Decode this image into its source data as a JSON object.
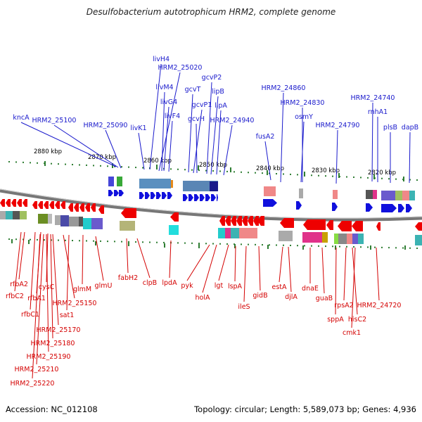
{
  "title": "Desulfobacterium autotrophicum HRM2, complete genome",
  "accession": "Accession: NC_012108",
  "summary": "Topology: circular; Length: 5,589,073 bp; Genes: 4,936",
  "colors": {
    "forward_label": "#1a1acc",
    "reverse_label": "#d40000",
    "forward_gene": "#1010dd",
    "reverse_gene": "#ee0000",
    "backbone": "#777777",
    "tick": "#2e7d32"
  },
  "ruler_labels": [
    "2880 kbp",
    "2870 kbp",
    "2860 kbp",
    "2850 kbp",
    "2840 kbp",
    "2830 kbp",
    "2820 kbp"
  ],
  "forward_genes": [
    "kncA",
    "HRM2_25100",
    "HRM2_25090",
    "livK1",
    "livH4",
    "HRM2_25020",
    "livM4",
    "livG4",
    "livF4",
    "gcvT",
    "gcvP1",
    "gcvH",
    "gcvP2",
    "lipB",
    "lipA",
    "HRM2_24940",
    "fusA2",
    "HRM2_24860",
    "HRM2_24830",
    "osmY",
    "HRM2_24790",
    "HRM2_24740",
    "rnhA1",
    "plsB",
    "dapB"
  ],
  "reverse_genes": [
    "rfbA2",
    "rfbC2",
    "rfbA1",
    "rfbC1",
    "cysC",
    "HRM2_25150",
    "sat1",
    "glmM",
    "glmU",
    "HRM2_25170",
    "HRM2_25180",
    "HRM2_25190",
    "HRM2_25210",
    "HRM2_25220",
    "fabH2",
    "clpB",
    "lpdA",
    "pyk",
    "holA",
    "lgt",
    "lspA",
    "ileS",
    "gidB",
    "estA",
    "djlA",
    "dnaE",
    "guaB",
    "sppA",
    "rpsA2",
    "hisC2",
    "cmk1",
    "HRM2_24720"
  ]
}
